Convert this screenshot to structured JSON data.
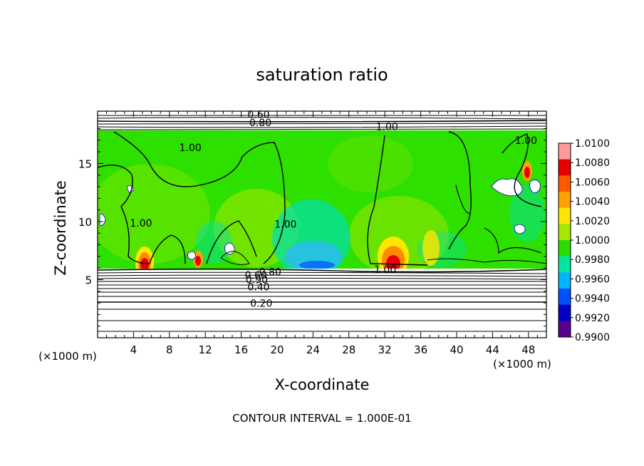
{
  "chart_data": {
    "type": "heatmap",
    "title": "saturation ratio",
    "xlabel": "X-coordinate",
    "ylabel": "Z-coordinate",
    "x_unit_left": "(×1000 m)",
    "x_unit_right": "(×1000 m)",
    "xlim": [
      0,
      50
    ],
    "ylim": [
      0,
      19.5
    ],
    "xticks": [
      {
        "value": 4,
        "label": "4"
      },
      {
        "value": 8,
        "label": "8"
      },
      {
        "value": 12,
        "label": "12"
      },
      {
        "value": 16,
        "label": "16"
      },
      {
        "value": 20,
        "label": "20"
      },
      {
        "value": 24,
        "label": "24"
      },
      {
        "value": 28,
        "label": "28"
      },
      {
        "value": 32,
        "label": "32"
      },
      {
        "value": 36,
        "label": "36"
      },
      {
        "value": 40,
        "label": "40"
      },
      {
        "value": 44,
        "label": "44"
      },
      {
        "value": 48,
        "label": "48"
      }
    ],
    "yticks": [
      {
        "value": 5,
        "label": "5"
      },
      {
        "value": 10,
        "label": "10"
      },
      {
        "value": 15,
        "label": "15"
      }
    ],
    "colorbar": {
      "min": 0.99,
      "max": 1.01,
      "labels": [
        "1.0100",
        "1.0080",
        "1.0060",
        "1.0040",
        "1.0020",
        "1.0000",
        "0.9980",
        "0.9960",
        "0.9940",
        "0.9920",
        "0.9900"
      ],
      "colors": [
        "#ff9a9a",
        "#e60000",
        "#ff5a00",
        "#ffa000",
        "#ffe600",
        "#a8e600",
        "#28dc00",
        "#00e6a0",
        "#00b4ff",
        "#0050ff",
        "#0000c8",
        "#5a008c"
      ]
    },
    "contour_labels": [
      {
        "text": "0.60",
        "x": 16.7,
        "y": 19.05
      },
      {
        "text": "0.80",
        "x": 16.9,
        "y": 18.35
      },
      {
        "text": "1.00",
        "x": 31.0,
        "y": 18.0
      },
      {
        "text": "1.00",
        "x": 9.1,
        "y": 16.2
      },
      {
        "text": "1.00",
        "x": 46.5,
        "y": 16.8
      },
      {
        "text": "1.00",
        "x": 3.6,
        "y": 9.7
      },
      {
        "text": "1.00",
        "x": 19.7,
        "y": 9.6
      },
      {
        "text": "1.00",
        "x": 30.8,
        "y": 5.7
      },
      {
        "text": "0.60",
        "x": 16.4,
        "y": 5.2
      },
      {
        "text": "0.80",
        "x": 18.0,
        "y": 5.5
      },
      {
        "text": "0.90",
        "x": 16.5,
        "y": 4.8
      },
      {
        "text": "0.40",
        "x": 16.7,
        "y": 4.2
      },
      {
        "text": "0.20",
        "x": 17.0,
        "y": 2.8
      }
    ],
    "footer": "CONTOUR INTERVAL = 1.000E-01"
  }
}
